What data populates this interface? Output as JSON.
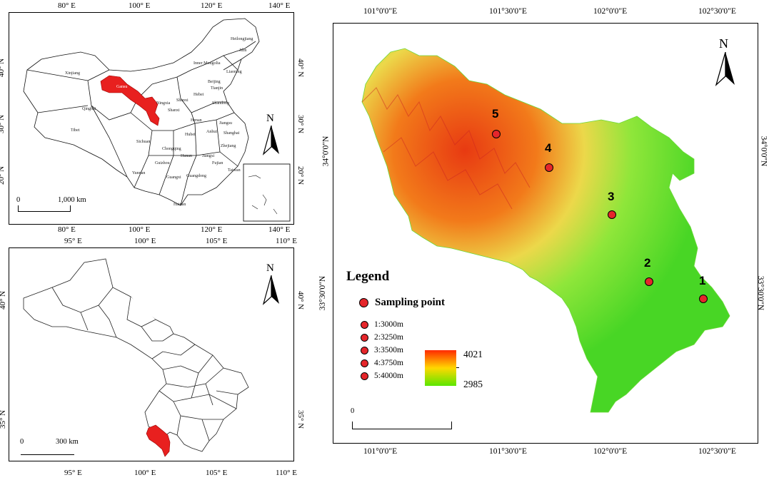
{
  "china_map": {
    "top_ticks": [
      "80° E",
      "100° E",
      "120° E",
      "140° E"
    ],
    "bottom_ticks": [
      "80° E",
      "100° E",
      "120° E",
      "140° E"
    ],
    "left_ticks": [
      "40° N",
      "30° N",
      "20° N"
    ],
    "right_ticks": [
      "40° N",
      "30° N",
      "20° N"
    ],
    "scale": {
      "start": "0",
      "end": "1,000 km"
    },
    "north": "N",
    "provinces": [
      "Heilongjiang",
      "Jilin",
      "Inner Mongolia",
      "Liaoning",
      "Xinjiang",
      "Gansu",
      "Beijing",
      "Tianjin",
      "Hebei",
      "Ningxia",
      "Shanxi",
      "Shandong",
      "Qinghai",
      "Shanxi",
      "Henan",
      "Jiangsu",
      "Tibet",
      "Sichuan",
      "Hubei",
      "Anhui",
      "Shanghai",
      "Chongqing",
      "Zhejiang",
      "Hunan",
      "Jiangxi",
      "Guizhou",
      "Fujian",
      "Yunnan",
      "Guangxi",
      "Guangdong",
      "Taiwan",
      "Hainan"
    ],
    "highlight_color": "#e8201f"
  },
  "gansu_map": {
    "top_ticks": [
      "95° E",
      "100° E",
      "105° E",
      "110° E"
    ],
    "bottom_ticks": [
      "95° E",
      "100° E",
      "105° E",
      "110° E"
    ],
    "left_ticks": [
      "40° N",
      "35° N"
    ],
    "right_ticks": [
      "40° N",
      "35° N"
    ],
    "scale": {
      "start": "0",
      "end": "300 km"
    },
    "north": "N",
    "highlight_color": "#e8201f"
  },
  "study_map": {
    "top_ticks": [
      "101°0'0\"E",
      "101°30'0\"E",
      "102°0'0\"E",
      "102°30'0\"E"
    ],
    "bottom_ticks": [
      "101°0'0\"E",
      "101°30'0\"E",
      "102°0'0\"E",
      "102°30'0\"E"
    ],
    "left_ticks": [
      "34°0'0\"N",
      "33°30'0\"N"
    ],
    "right_ticks": [
      "34°0'0\"N",
      "33°30'0\"N"
    ],
    "scale": {
      "start": "0"
    },
    "north": "N",
    "points": [
      {
        "label": "1",
        "elevation": "3000m"
      },
      {
        "label": "2",
        "elevation": "3250m"
      },
      {
        "label": "3",
        "elevation": "3500m"
      },
      {
        "label": "4",
        "elevation": "3750m"
      },
      {
        "label": "5",
        "elevation": "4000m"
      }
    ],
    "legend": {
      "title": "Legend",
      "main": "Sampling point",
      "items": [
        "1:3000m",
        "2:3250m",
        "3:3500m",
        "4:3750m",
        "5:4000m"
      ],
      "ramp_max": "4021",
      "ramp_min": "2985",
      "ramp_colors": [
        "#ff2a00",
        "#ffd800",
        "#5be600"
      ]
    }
  }
}
